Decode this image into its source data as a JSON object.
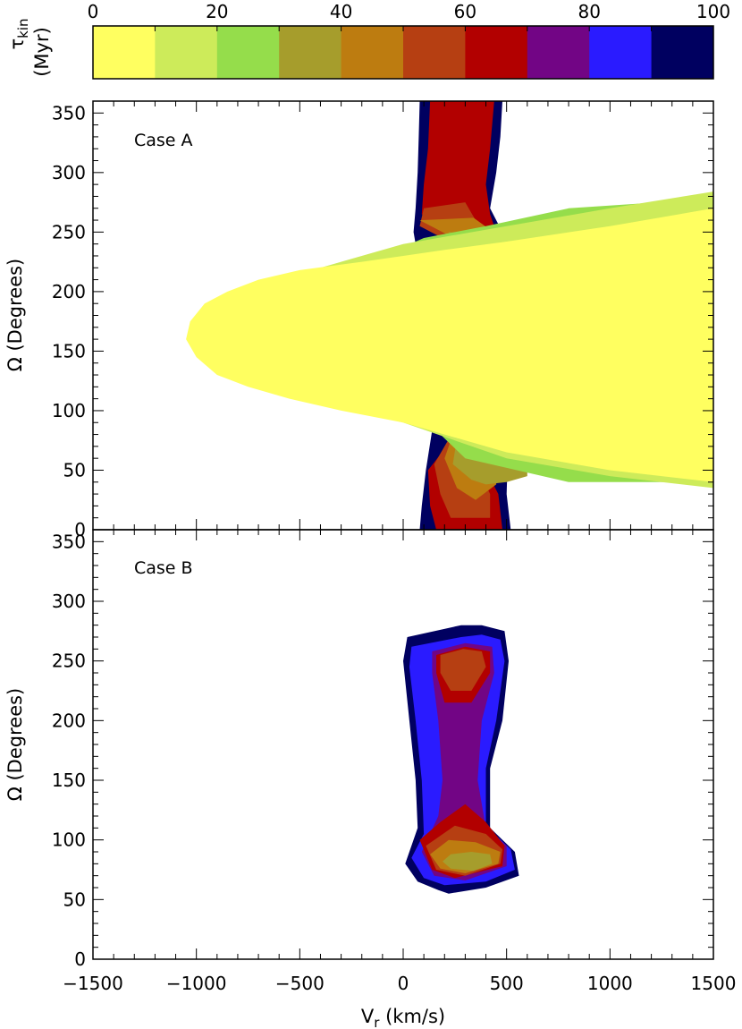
{
  "colorbar": {
    "label_symbol": "τ",
    "label_subscript": "kin",
    "label_unit": "(Myr)",
    "range": [
      0,
      100
    ],
    "ticks": [
      "0",
      "20",
      "40",
      "60",
      "80",
      "100"
    ],
    "bins": [
      {
        "min": 0,
        "max": 10,
        "color": "#ffff60"
      },
      {
        "min": 10,
        "max": 20,
        "color": "#cdeb5a"
      },
      {
        "min": 20,
        "max": 30,
        "color": "#95dd4b"
      },
      {
        "min": 30,
        "max": 40,
        "color": "#a69d2c"
      },
      {
        "min": 40,
        "max": 50,
        "color": "#bd7c10"
      },
      {
        "min": 50,
        "max": 60,
        "color": "#b63f12"
      },
      {
        "min": 60,
        "max": 70,
        "color": "#b20000"
      },
      {
        "min": 70,
        "max": 80,
        "color": "#720585"
      },
      {
        "min": 80,
        "max": 90,
        "color": "#2a1bff"
      },
      {
        "min": 90,
        "max": 100,
        "color": "#000060"
      }
    ]
  },
  "chart_data": [
    {
      "type": "heatmap",
      "label": "Case A",
      "xlim": [
        -1500,
        1500
      ],
      "ylim": [
        0,
        360
      ],
      "xlabel_main": "V",
      "xlabel_sub": "r",
      "xlabel_unit": " (km/s)",
      "ylabel": "Ω (Degrees)",
      "xticks": [
        "−1500",
        "−1000",
        "−500",
        "0",
        "500",
        "1000",
        "1500"
      ],
      "yticks": [
        "0",
        "50",
        "100",
        "150",
        "200",
        "250",
        "300",
        "350"
      ],
      "regions": [
        {
          "tau_bin": "80-100",
          "points": [
            [
              80,
              360
            ],
            [
              75,
              330
            ],
            [
              70,
              300
            ],
            [
              60,
              270
            ],
            [
              50,
              250
            ],
            [
              100,
              200
            ],
            [
              200,
              150
            ],
            [
              110,
              50
            ],
            [
              90,
              20
            ],
            [
              80,
              0
            ],
            [
              520,
              0
            ],
            [
              500,
              30
            ],
            [
              540,
              250
            ],
            [
              480,
              250
            ],
            [
              420,
              270
            ],
            [
              450,
              300
            ],
            [
              470,
              330
            ],
            [
              480,
              360
            ]
          ]
        },
        {
          "tau_bin": "60-70",
          "points": [
            [
              130,
              360
            ],
            [
              120,
              320
            ],
            [
              100,
              290
            ],
            [
              90,
              265
            ],
            [
              300,
              230
            ],
            [
              300,
              90
            ],
            [
              120,
              50
            ],
            [
              130,
              20
            ],
            [
              160,
              0
            ],
            [
              480,
              0
            ],
            [
              460,
              30
            ],
            [
              430,
              40
            ],
            [
              450,
              250
            ],
            [
              420,
              265
            ],
            [
              400,
              290
            ],
            [
              420,
              320
            ],
            [
              440,
              360
            ]
          ]
        },
        {
          "tau_bin": "50-60",
          "points": [
            [
              100,
              270
            ],
            [
              80,
              255
            ],
            [
              300,
              235
            ],
            [
              300,
              100
            ],
            [
              150,
              55
            ],
            [
              180,
              30
            ],
            [
              230,
              10
            ],
            [
              420,
              10
            ],
            [
              420,
              30
            ],
            [
              380,
              45
            ],
            [
              460,
              235
            ],
            [
              400,
              250
            ],
            [
              350,
              260
            ],
            [
              300,
              275
            ]
          ]
        },
        {
          "tau_bin": "40-50",
          "points": [
            [
              80,
              260
            ],
            [
              300,
              240
            ],
            [
              300,
              110
            ],
            [
              200,
              60
            ],
            [
              260,
              35
            ],
            [
              350,
              25
            ],
            [
              450,
              38
            ],
            [
              480,
              245
            ],
            [
              420,
              252
            ],
            [
              340,
              262
            ]
          ]
        },
        {
          "tau_bin": "30-40",
          "points": [
            [
              220,
              250
            ],
            [
              450,
              245
            ],
            [
              520,
              240
            ],
            [
              600,
              235
            ],
            [
              600,
              45
            ],
            [
              500,
              40
            ],
            [
              400,
              38
            ],
            [
              330,
              42
            ],
            [
              240,
              55
            ],
            [
              300,
              120
            ],
            [
              300,
              230
            ]
          ]
        },
        {
          "tau_bin": "20-30",
          "points": [
            [
              -100,
              230
            ],
            [
              100,
              245
            ],
            [
              400,
              255
            ],
            [
              800,
              270
            ],
            [
              1500,
              278
            ],
            [
              1500,
              40
            ],
            [
              800,
              40
            ],
            [
              300,
              60
            ],
            [
              0,
              110
            ],
            [
              -100,
              120
            ]
          ]
        },
        {
          "tau_bin": "10-20",
          "points": [
            [
              -700,
              205
            ],
            [
              0,
              240
            ],
            [
              500,
              255
            ],
            [
              1000,
              270
            ],
            [
              1500,
              284
            ],
            [
              1500,
              35
            ],
            [
              1000,
              45
            ],
            [
              500,
              60
            ],
            [
              0,
              90
            ],
            [
              -700,
              120
            ]
          ]
        },
        {
          "tau_bin": "0-10",
          "points": [
            [
              -1050,
              160
            ],
            [
              -1030,
              175
            ],
            [
              -960,
              190
            ],
            [
              -850,
              200
            ],
            [
              -700,
              210
            ],
            [
              -500,
              218
            ],
            [
              -200,
              225
            ],
            [
              0,
              230
            ],
            [
              200,
              235
            ],
            [
              500,
              242
            ],
            [
              1000,
              255
            ],
            [
              1500,
              270
            ],
            [
              1500,
              40
            ],
            [
              1000,
              50
            ],
            [
              500,
              65
            ],
            [
              200,
              80
            ],
            [
              0,
              90
            ],
            [
              -300,
              100
            ],
            [
              -550,
              110
            ],
            [
              -750,
              120
            ],
            [
              -900,
              130
            ],
            [
              -1000,
              145
            ]
          ]
        }
      ]
    },
    {
      "type": "heatmap",
      "label": "Case B",
      "xlim": [
        -1500,
        1500
      ],
      "ylim": [
        0,
        360
      ],
      "xlabel_main": "V",
      "xlabel_sub": "r",
      "xlabel_unit": " (km/s)",
      "ylabel": "Ω (Degrees)",
      "xticks": [
        "−1500",
        "−1000",
        "−500",
        "0",
        "500",
        "1000",
        "1500"
      ],
      "yticks": [
        "0",
        "50",
        "100",
        "150",
        "200",
        "250",
        "300",
        "350"
      ],
      "regions": [
        {
          "tau_bin": "90-100",
          "points": [
            [
              20,
              270
            ],
            [
              0,
              250
            ],
            [
              30,
              200
            ],
            [
              60,
              150
            ],
            [
              70,
              110
            ],
            [
              10,
              80
            ],
            [
              70,
              65
            ],
            [
              170,
              58
            ],
            [
              220,
              55
            ],
            [
              400,
              60
            ],
            [
              560,
              70
            ],
            [
              540,
              90
            ],
            [
              420,
              110
            ],
            [
              420,
              160
            ],
            [
              480,
              200
            ],
            [
              510,
              250
            ],
            [
              490,
              275
            ],
            [
              380,
              280
            ],
            [
              280,
              280
            ]
          ]
        },
        {
          "tau_bin": "80-90",
          "points": [
            [
              40,
              262
            ],
            [
              30,
              245
            ],
            [
              60,
              200
            ],
            [
              90,
              150
            ],
            [
              100,
              105
            ],
            [
              40,
              85
            ],
            [
              100,
              68
            ],
            [
              200,
              62
            ],
            [
              400,
              65
            ],
            [
              540,
              75
            ],
            [
              520,
              92
            ],
            [
              400,
              112
            ],
            [
              400,
              160
            ],
            [
              450,
              200
            ],
            [
              490,
              250
            ],
            [
              470,
              268
            ],
            [
              380,
              272
            ],
            [
              280,
              270
            ]
          ]
        },
        {
          "tau_bin": "70-80",
          "points": [
            [
              140,
              258
            ],
            [
              140,
              240
            ],
            [
              170,
              200
            ],
            [
              190,
              150
            ],
            [
              170,
              120
            ],
            [
              90,
              90
            ],
            [
              150,
              70
            ],
            [
              300,
              66
            ],
            [
              500,
              78
            ],
            [
              500,
              95
            ],
            [
              400,
              110
            ],
            [
              360,
              150
            ],
            [
              380,
              200
            ],
            [
              440,
              240
            ],
            [
              430,
              262
            ],
            [
              300,
              265
            ]
          ]
        },
        {
          "tau_bin": "60-70",
          "points": [
            [
              160,
              255
            ],
            [
              160,
              240
            ],
            [
              200,
              215
            ],
            [
              330,
              215
            ],
            [
              420,
              240
            ],
            [
              420,
              258
            ],
            [
              300,
              262
            ]
          ]
        },
        {
          "tau_bin": "60-70",
          "points": [
            [
              80,
              100
            ],
            [
              140,
              75
            ],
            [
              250,
              68
            ],
            [
              480,
              78
            ],
            [
              490,
              95
            ],
            [
              400,
              115
            ],
            [
              300,
              130
            ],
            [
              180,
              115
            ]
          ]
        },
        {
          "tau_bin": "50-60",
          "points": [
            [
              180,
              255
            ],
            [
              180,
              240
            ],
            [
              230,
              225
            ],
            [
              330,
              225
            ],
            [
              400,
              245
            ],
            [
              380,
              258
            ],
            [
              290,
              260
            ]
          ]
        },
        {
          "tau_bin": "50-60",
          "points": [
            [
              110,
              95
            ],
            [
              160,
              75
            ],
            [
              300,
              70
            ],
            [
              470,
              80
            ],
            [
              480,
              92
            ],
            [
              400,
              105
            ],
            [
              250,
              112
            ]
          ]
        },
        {
          "tau_bin": "40-50",
          "points": [
            [
              130,
              88
            ],
            [
              180,
              76
            ],
            [
              300,
              72
            ],
            [
              460,
              80
            ],
            [
              470,
              90
            ],
            [
              350,
              98
            ],
            [
              220,
              100
            ]
          ]
        },
        {
          "tau_bin": "30-40",
          "points": [
            [
              190,
              82
            ],
            [
              230,
              76
            ],
            [
              340,
              74
            ],
            [
              430,
              80
            ],
            [
              420,
              88
            ],
            [
              330,
              90
            ],
            [
              230,
              88
            ]
          ]
        }
      ]
    }
  ]
}
